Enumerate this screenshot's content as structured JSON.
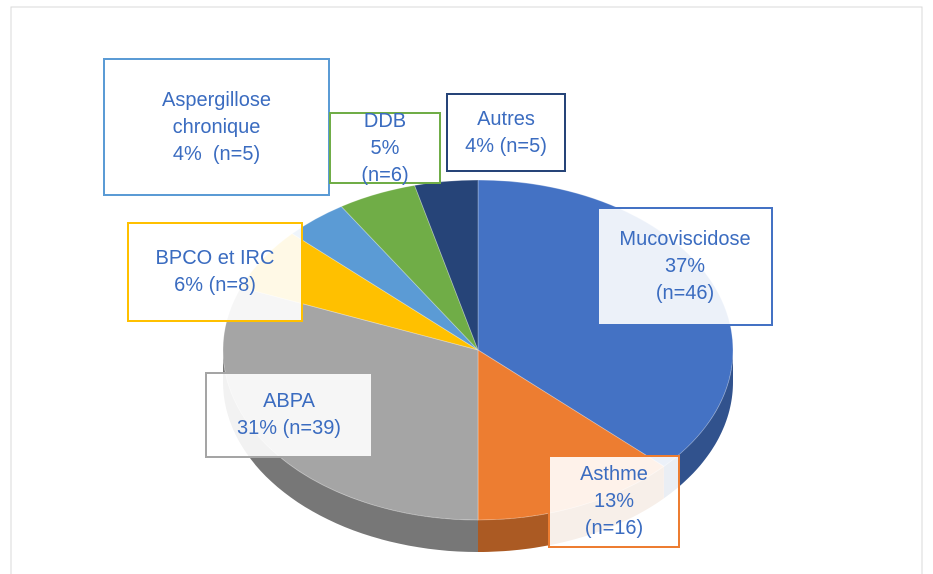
{
  "chart_data": {
    "type": "pie",
    "categories": [
      "Mucoviscidose",
      "Asthme",
      "ABPA",
      "BPCO et IRC",
      "Aspergillose chronique",
      "DDB",
      "Autres"
    ],
    "values": [
      37,
      13,
      31,
      6,
      4,
      5,
      4
    ],
    "value_labels": [
      "37%\n(n=46)",
      "13% (n=16)",
      "31% (n=39)",
      "6% (n=8)",
      "4%  (n=5)",
      "5% (n=6)",
      "4% (n=5)"
    ],
    "colors": [
      "#4472c4",
      "#ed7d31",
      "#a5a5a5",
      "#ffc000",
      "#5b9bd5",
      "#70ad47",
      "#264478"
    ]
  }
}
